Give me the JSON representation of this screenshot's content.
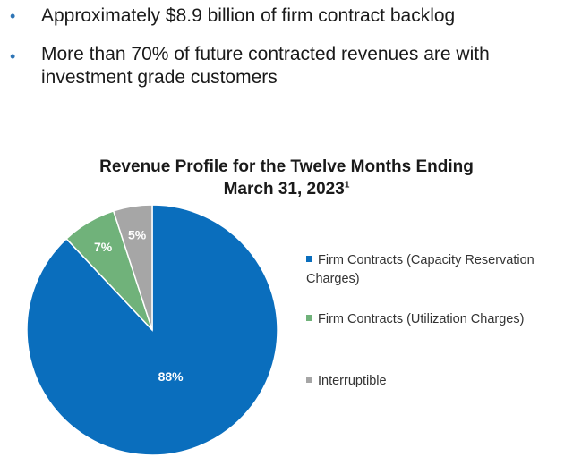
{
  "bullets": [
    "Approximately $8.9 billion of firm contract backlog",
    "More than 70% of future contracted revenues are with investment grade customers"
  ],
  "chart_data": {
    "type": "pie",
    "title": "Revenue Profile for the Twelve Months Ending March 31, 2023",
    "title_line1": "Revenue Profile for the Twelve Months Ending",
    "title_line2": "March 31, 2023",
    "title_footnote": "1",
    "slices": [
      {
        "label": "Firm Contracts (Capacity Reservation Charges)",
        "value": 88,
        "display": "88%",
        "color": "#0a6ebd"
      },
      {
        "label": "Firm Contracts (Utilization Charges)",
        "value": 7,
        "display": "7%",
        "color": "#70b27a"
      },
      {
        "label": "Interruptible",
        "value": 5,
        "display": "5%",
        "color": "#a6a6a6"
      }
    ],
    "legend_position": "right",
    "start": "12 o'clock",
    "direction": "clockwise"
  }
}
